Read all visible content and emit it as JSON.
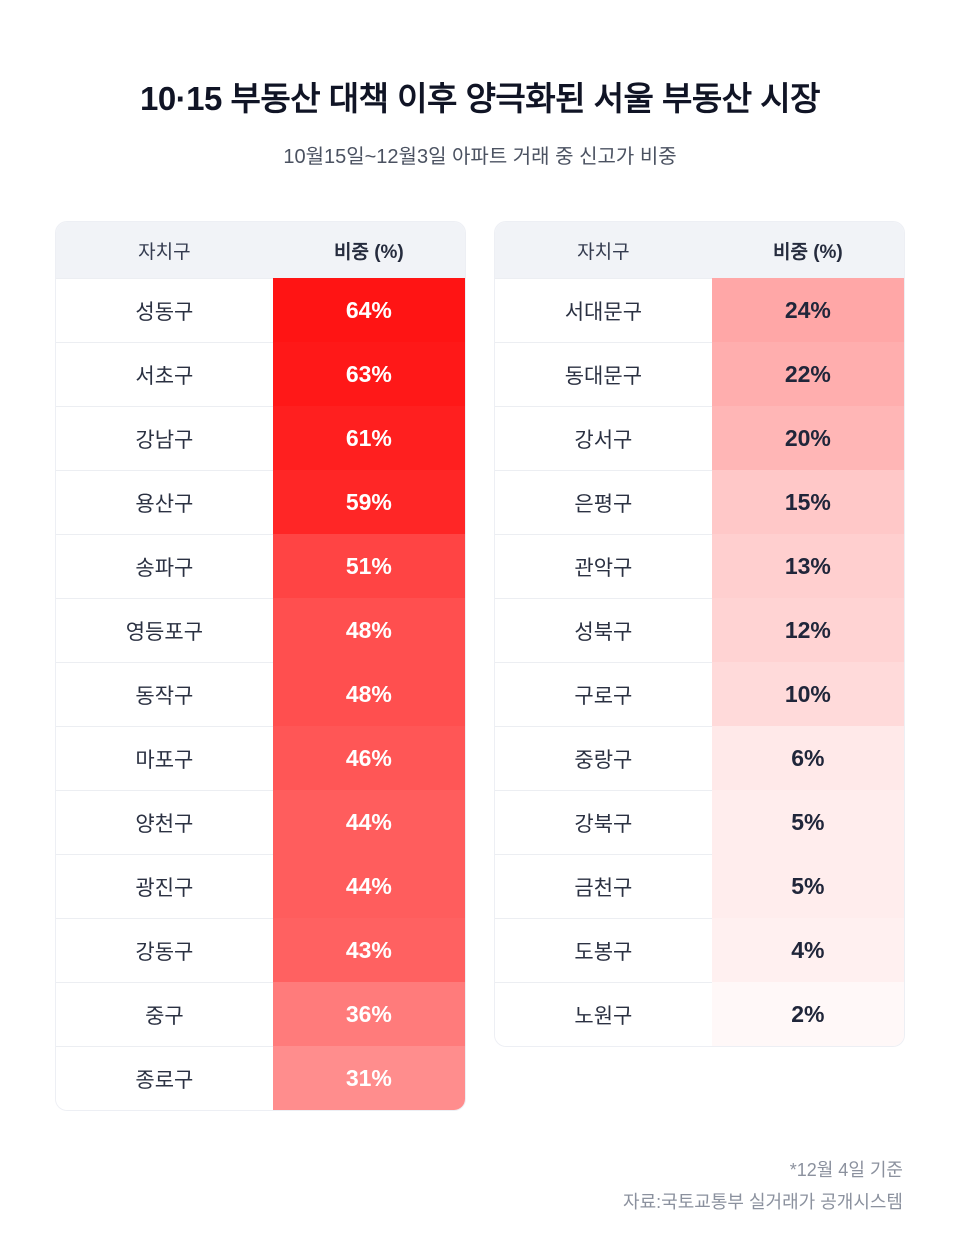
{
  "page": {
    "title": "10·15 부동산 대책 이후 양극화된 서울 부동산 시장",
    "subtitle": "10월15일~12월3일 아파트 거래 중 신고가 비중",
    "footnote_line1": "*12월 4일 기준",
    "footnote_line2": "자료:국토교통부 실거래가 공개시스템"
  },
  "colors": {
    "heat_max": "#ff1414",
    "heat_min": "#ffffff",
    "value_text_light": "#ffffff",
    "value_text_dark": "#20263a",
    "title_text": "#101425",
    "header_bg": "#f1f3f7"
  },
  "chart_data": {
    "type": "table",
    "title": "10·15 부동산 대책 이후 양극화된 서울 부동산 시장",
    "subtitle": "10월15일~12월3일 아파트 거래 중 신고가 비중",
    "unit": "%",
    "scale_max": 64,
    "white_text_threshold": 28,
    "tables": [
      {
        "headers": [
          "자치구",
          "비중 (%)"
        ],
        "rows": [
          {
            "district": "성동구",
            "value": 64
          },
          {
            "district": "서초구",
            "value": 63
          },
          {
            "district": "강남구",
            "value": 61
          },
          {
            "district": "용산구",
            "value": 59
          },
          {
            "district": "송파구",
            "value": 51
          },
          {
            "district": "영등포구",
            "value": 48
          },
          {
            "district": "동작구",
            "value": 48
          },
          {
            "district": "마포구",
            "value": 46
          },
          {
            "district": "양천구",
            "value": 44
          },
          {
            "district": "광진구",
            "value": 44
          },
          {
            "district": "강동구",
            "value": 43
          },
          {
            "district": "중구",
            "value": 36
          },
          {
            "district": "종로구",
            "value": 31
          }
        ]
      },
      {
        "headers": [
          "자치구",
          "비중 (%)"
        ],
        "rows": [
          {
            "district": "서대문구",
            "value": 24
          },
          {
            "district": "동대문구",
            "value": 22
          },
          {
            "district": "강서구",
            "value": 20
          },
          {
            "district": "은평구",
            "value": 15
          },
          {
            "district": "관악구",
            "value": 13
          },
          {
            "district": "성북구",
            "value": 12
          },
          {
            "district": "구로구",
            "value": 10
          },
          {
            "district": "중랑구",
            "value": 6
          },
          {
            "district": "강북구",
            "value": 5
          },
          {
            "district": "금천구",
            "value": 5
          },
          {
            "district": "도봉구",
            "value": 4
          },
          {
            "district": "노원구",
            "value": 2
          }
        ]
      }
    ],
    "footnotes": [
      "*12월 4일 기준",
      "자료:국토교통부 실거래가 공개시스템"
    ]
  }
}
